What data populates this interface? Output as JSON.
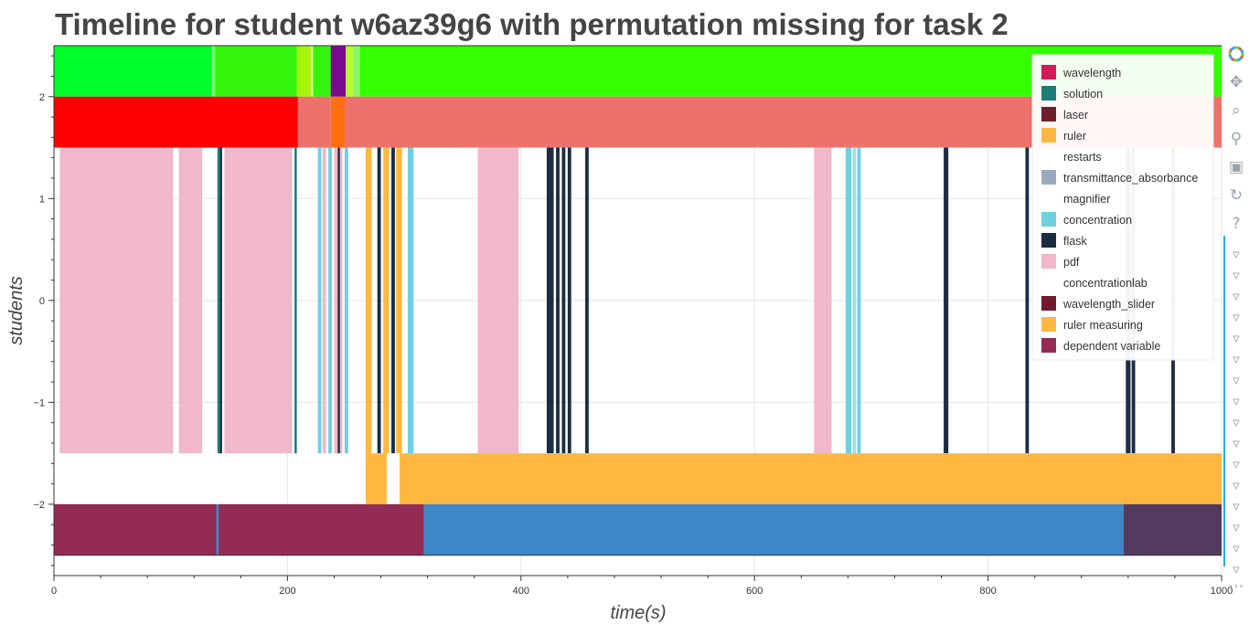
{
  "chart_data": {
    "type": "timeline",
    "title": "Timeline for student w6az39g6 with permutation missing for task 2",
    "xlabel": "time(s)",
    "ylabel": "students",
    "xlim": [
      0,
      1000
    ],
    "ylim": [
      -2.7,
      2.5
    ],
    "xticks": [
      0,
      200,
      400,
      600,
      800,
      1000
    ],
    "yticks": [
      {
        "value": -2,
        "label": "−2"
      },
      {
        "value": -1,
        "label": "−1"
      },
      {
        "value": 0,
        "label": "0"
      },
      {
        "value": 1,
        "label": "1"
      },
      {
        "value": 2,
        "label": "2"
      }
    ],
    "grid": true,
    "legend_position": "top-right",
    "legend": [
      {
        "label": "wavelength",
        "color": "#d6195a"
      },
      {
        "label": "solution",
        "color": "#1f7c7a"
      },
      {
        "label": "laser",
        "color": "#6e1f2e"
      },
      {
        "label": "ruler",
        "color": "#ffb83f"
      },
      {
        "label": "restarts",
        "color": "#ffffff"
      },
      {
        "label": "transmittance_absorbance",
        "color": "#9aa9bd"
      },
      {
        "label": "magnifier",
        "color": "#ffffff"
      },
      {
        "label": "concentration",
        "color": "#70d0de"
      },
      {
        "label": "flask",
        "color": "#1b2d42"
      },
      {
        "label": "pdf",
        "color": "#f0b8ca"
      },
      {
        "label": "concentrationlab",
        "color": "#ffffff"
      },
      {
        "label": "wavelength_slider",
        "color": "#6e1b30"
      },
      {
        "label": "ruler measuring",
        "color": "#ffb83f"
      },
      {
        "label": "dependent variable",
        "color": "#942b54"
      }
    ],
    "rows": [
      {
        "y0": 2,
        "y1": 2.5,
        "segments": [
          {
            "start": 0,
            "end": 135,
            "color": "#00ff2a"
          },
          {
            "start": 135,
            "end": 138,
            "color": "#6df96d"
          },
          {
            "start": 138,
            "end": 208,
            "color": "#33f50b"
          },
          {
            "start": 208,
            "end": 220,
            "color": "#a6f50b"
          },
          {
            "start": 220,
            "end": 222,
            "color": "#d6fa8a"
          },
          {
            "start": 222,
            "end": 237,
            "color": "#33f50b"
          },
          {
            "start": 237,
            "end": 250,
            "color": "#7a0b8f"
          },
          {
            "start": 250,
            "end": 256,
            "color": "#b4ff2e"
          },
          {
            "start": 256,
            "end": 262,
            "color": "#8df56d"
          },
          {
            "start": 262,
            "end": 1000,
            "color": "#33ff00"
          }
        ]
      },
      {
        "y0": 1.5,
        "y1": 2,
        "segments": [
          {
            "start": 0,
            "end": 209,
            "color": "#ff0000"
          },
          {
            "start": 209,
            "end": 237,
            "color": "#ee726c"
          },
          {
            "start": 237,
            "end": 249,
            "color": "#ff6e0e"
          },
          {
            "start": 249,
            "end": 1000,
            "color": "#ee726c"
          }
        ]
      },
      {
        "y0": -1.5,
        "y1": 1.5,
        "segments": [
          {
            "start": 5,
            "end": 102,
            "color": "#f0b8ca"
          },
          {
            "start": 107,
            "end": 127,
            "color": "#f0b8ca"
          },
          {
            "start": 140,
            "end": 142,
            "color": "#1f7c7a"
          },
          {
            "start": 142,
            "end": 144,
            "color": "#1b2d42"
          },
          {
            "start": 146,
            "end": 204,
            "color": "#f0b8ca"
          },
          {
            "start": 206,
            "end": 208,
            "color": "#1f7c7a"
          },
          {
            "start": 226,
            "end": 229,
            "color": "#70d0de"
          },
          {
            "start": 230,
            "end": 233,
            "color": "#f0b8ca"
          },
          {
            "start": 235,
            "end": 238,
            "color": "#70d0de"
          },
          {
            "start": 240,
            "end": 243,
            "color": "#f0b8ca"
          },
          {
            "start": 243,
            "end": 245,
            "color": "#1b2d42"
          },
          {
            "start": 245,
            "end": 247,
            "color": "#f0b8ca"
          },
          {
            "start": 249,
            "end": 252,
            "color": "#70d0de"
          },
          {
            "start": 267,
            "end": 272,
            "color": "#ffb83f"
          },
          {
            "start": 277,
            "end": 280,
            "color": "#1b2d42"
          },
          {
            "start": 282,
            "end": 287,
            "color": "#ffb83f"
          },
          {
            "start": 289,
            "end": 292,
            "color": "#1b2d42"
          },
          {
            "start": 293,
            "end": 298,
            "color": "#ffb83f"
          },
          {
            "start": 303,
            "end": 308,
            "color": "#70d0de"
          },
          {
            "start": 363,
            "end": 398,
            "color": "#f0b8ca"
          },
          {
            "start": 422,
            "end": 428,
            "color": "#1b2d42"
          },
          {
            "start": 430,
            "end": 433,
            "color": "#1b2d42"
          },
          {
            "start": 435,
            "end": 438,
            "color": "#1b2d42"
          },
          {
            "start": 440,
            "end": 443,
            "color": "#1b2d42"
          },
          {
            "start": 455,
            "end": 458,
            "color": "#1b2d42"
          },
          {
            "start": 651,
            "end": 666,
            "color": "#f0b8ca"
          },
          {
            "start": 678,
            "end": 683,
            "color": "#70d0de"
          },
          {
            "start": 684,
            "end": 687,
            "color": "#9fe0e8"
          },
          {
            "start": 688,
            "end": 691,
            "color": "#70d0de"
          },
          {
            "start": 762,
            "end": 766,
            "color": "#1b2d42"
          },
          {
            "start": 832,
            "end": 835,
            "color": "#1b2d42"
          },
          {
            "start": 918,
            "end": 922,
            "color": "#1b2d42"
          },
          {
            "start": 923,
            "end": 926,
            "color": "#1b2d42"
          },
          {
            "start": 957,
            "end": 960,
            "color": "#1b2d42"
          }
        ]
      },
      {
        "y0": -2,
        "y1": -1.5,
        "segments": [
          {
            "start": 267,
            "end": 285,
            "color": "#ffb83f"
          },
          {
            "start": 296,
            "end": 1000,
            "color": "#ffb83f"
          }
        ]
      },
      {
        "y0": -2.5,
        "y1": -2,
        "segments": [
          {
            "start": 0,
            "end": 139,
            "color": "#942b54"
          },
          {
            "start": 139,
            "end": 141,
            "color": "#3e87c7"
          },
          {
            "start": 141,
            "end": 317,
            "color": "#942b54"
          },
          {
            "start": 317,
            "end": 916,
            "color": "#3e87c7"
          },
          {
            "start": 916,
            "end": 1000,
            "color": "#533b60"
          }
        ]
      }
    ],
    "row_borders": [
      2.5,
      -2.5
    ]
  },
  "toolbar": {
    "tools": [
      {
        "name": "bokeh-logo-icon",
        "glyph": "",
        "interactable": false
      },
      {
        "name": "pan-tool-icon",
        "glyph": "✥",
        "interactable": true
      },
      {
        "name": "box-zoom-tool-icon",
        "glyph": "⌕",
        "interactable": true
      },
      {
        "name": "wheel-zoom-tool-icon",
        "glyph": "⚲",
        "interactable": true
      },
      {
        "name": "save-tool-icon",
        "glyph": "▣",
        "interactable": true
      },
      {
        "name": "reset-tool-icon",
        "glyph": "↻",
        "interactable": true
      },
      {
        "name": "help-tool-icon",
        "glyph": "?",
        "interactable": true
      }
    ],
    "hover_tool_glyph": "▿",
    "hover_tool_count": 16,
    "more_glyph": "⋯"
  }
}
